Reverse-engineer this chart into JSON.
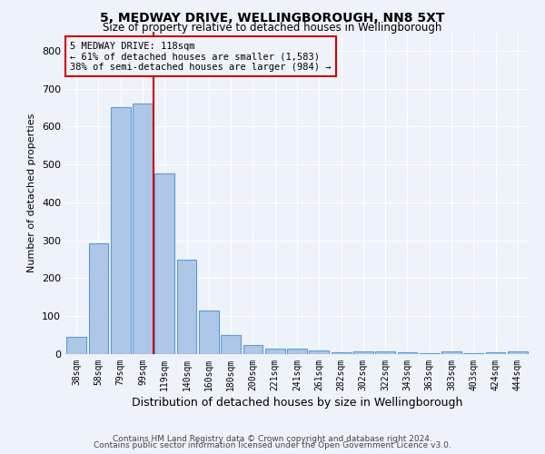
{
  "title": "5, MEDWAY DRIVE, WELLINGBOROUGH, NN8 5XT",
  "subtitle": "Size of property relative to detached houses in Wellingborough",
  "xlabel": "Distribution of detached houses by size in Wellingborough",
  "ylabel": "Number of detached properties",
  "bar_labels": [
    "38sqm",
    "58sqm",
    "79sqm",
    "99sqm",
    "119sqm",
    "140sqm",
    "160sqm",
    "180sqm",
    "200sqm",
    "221sqm",
    "241sqm",
    "261sqm",
    "282sqm",
    "302sqm",
    "322sqm",
    "343sqm",
    "363sqm",
    "383sqm",
    "403sqm",
    "424sqm",
    "444sqm"
  ],
  "bar_values": [
    45,
    292,
    651,
    660,
    476,
    248,
    115,
    50,
    25,
    14,
    14,
    10,
    5,
    8,
    8,
    5,
    2,
    8,
    2,
    5,
    8
  ],
  "bar_color": "#aec6e8",
  "bar_edge_color": "#5b9bd5",
  "vline_color": "#cc0000",
  "annotation_text": "5 MEDWAY DRIVE: 118sqm\n← 61% of detached houses are smaller (1,583)\n38% of semi-detached houses are larger (984) →",
  "annotation_box_color": "#cc0000",
  "ylim": [
    0,
    850
  ],
  "yticks": [
    0,
    100,
    200,
    300,
    400,
    500,
    600,
    700,
    800
  ],
  "footer_line1": "Contains HM Land Registry data © Crown copyright and database right 2024.",
  "footer_line2": "Contains public sector information licensed under the Open Government Licence v3.0.",
  "background_color": "#eef2fa",
  "grid_color": "#ffffff"
}
